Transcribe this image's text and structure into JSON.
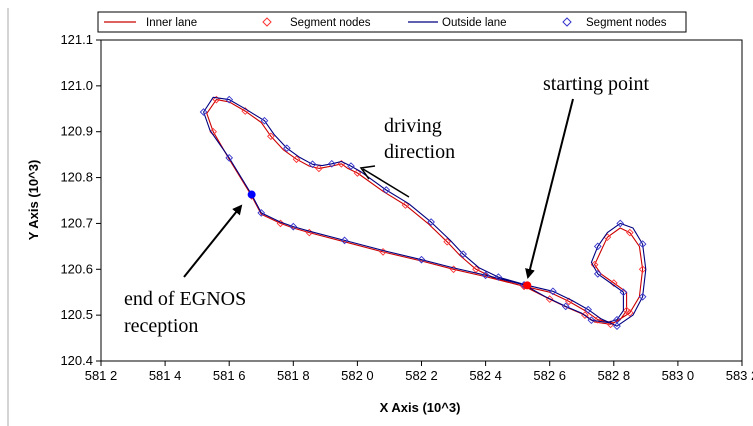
{
  "chart_data": {
    "type": "line",
    "xlabel": "X Axis (10^3)",
    "ylabel": "Y Axis (10^3)",
    "xlim": [
      581.2,
      583.2
    ],
    "ylim": [
      120.4,
      121.1
    ],
    "x_tick_labels": [
      "581 2",
      "581 4",
      "581 6",
      "581 8",
      "582 0",
      "582 2",
      "582 4",
      "582 6",
      "582 8",
      "583 0",
      "583 2"
    ],
    "y_tick_labels": [
      "120.4",
      "120.5",
      "120.6",
      "120.7",
      "120.8",
      "120.9",
      "121.0",
      "121.1"
    ],
    "legend": {
      "placement": "top",
      "entries": [
        "Inner lane",
        "Segment nodes",
        "Outside lane",
        "Segment nodes"
      ]
    },
    "colors": {
      "inner": "#cc0000",
      "outside": "#000080",
      "inner_nodes": "#ff3333",
      "outside_nodes": "#3333cc",
      "start": "#ff0000",
      "end": "#0000ff"
    },
    "series": [
      {
        "name": "Inner lane",
        "x": [
          582.52,
          582.4,
          582.3,
          582.2,
          582.08,
          581.96,
          581.85,
          581.8,
          581.76,
          581.7,
          581.67,
          581.6,
          581.55,
          581.53,
          581.56,
          581.6,
          581.65,
          581.7,
          581.73,
          581.77,
          581.81,
          581.85,
          581.88,
          581.92,
          581.95,
          581.97,
          582.0,
          582.08,
          582.15,
          582.22,
          582.28,
          582.32,
          582.37,
          582.43,
          582.52,
          582.6,
          582.66,
          582.71,
          582.75,
          582.8,
          582.85,
          582.88,
          582.89,
          582.88,
          582.85,
          582.82,
          582.78,
          582.76,
          582.74,
          582.76,
          582.8,
          582.84,
          582.84,
          582.82,
          582.79,
          582.74,
          582.71,
          582.66,
          582.6,
          582.52
        ],
        "y": [
          120.563,
          120.584,
          120.6,
          120.618,
          120.638,
          120.66,
          120.68,
          120.69,
          120.7,
          120.72,
          120.76,
          120.84,
          120.9,
          120.94,
          120.97,
          120.965,
          120.945,
          120.92,
          120.89,
          120.86,
          120.84,
          120.825,
          120.82,
          120.825,
          120.83,
          120.82,
          120.81,
          120.77,
          120.74,
          120.7,
          120.66,
          120.63,
          120.6,
          120.58,
          120.563,
          120.55,
          120.53,
          120.51,
          120.49,
          120.483,
          120.505,
          120.54,
          120.6,
          120.65,
          120.68,
          120.69,
          120.67,
          120.64,
          120.61,
          120.59,
          120.57,
          120.55,
          120.51,
          120.49,
          120.48,
          120.485,
          120.5,
          120.515,
          120.535,
          120.563
        ]
      },
      {
        "name": "Outside lane",
        "x": [
          582.52,
          582.4,
          582.3,
          582.2,
          582.08,
          581.96,
          581.85,
          581.8,
          581.76,
          581.7,
          581.67,
          581.6,
          581.54,
          581.52,
          581.55,
          581.6,
          581.65,
          581.71,
          581.74,
          581.78,
          581.82,
          581.86,
          581.89,
          581.92,
          581.95,
          581.98,
          582.01,
          582.09,
          582.16,
          582.23,
          582.29,
          582.33,
          582.38,
          582.44,
          582.53,
          582.61,
          582.67,
          582.72,
          582.76,
          582.81,
          582.86,
          582.89,
          582.9,
          582.89,
          582.86,
          582.82,
          582.78,
          582.75,
          582.73,
          582.75,
          582.79,
          582.83,
          582.83,
          582.81,
          582.78,
          582.73,
          582.7,
          582.65,
          582.59,
          582.52
        ],
        "y": [
          120.566,
          120.587,
          120.603,
          120.621,
          120.641,
          120.663,
          120.683,
          120.693,
          120.703,
          120.723,
          120.763,
          120.843,
          120.903,
          120.943,
          120.975,
          120.97,
          120.95,
          120.924,
          120.894,
          120.864,
          120.844,
          120.829,
          120.826,
          120.83,
          120.835,
          120.825,
          120.813,
          120.773,
          120.743,
          120.703,
          120.663,
          120.633,
          120.603,
          120.583,
          120.565,
          120.552,
          120.532,
          120.512,
          120.492,
          120.476,
          120.5,
          120.54,
          120.6,
          120.655,
          120.69,
          120.7,
          120.68,
          120.65,
          120.615,
          120.59,
          120.57,
          120.55,
          120.51,
          120.49,
          120.484,
          120.489,
          120.504,
          120.519,
          120.539,
          120.566
        ]
      }
    ],
    "start_point": {
      "x": 582.53,
      "y": 120.565
    },
    "end_point": {
      "x": 581.67,
      "y": 120.763
    },
    "annotations": {
      "starting_point": "starting point",
      "driving_direction_1": "driving",
      "driving_direction_2": "direction",
      "egnos_1": "end of EGNOS",
      "egnos_2": "reception"
    }
  }
}
